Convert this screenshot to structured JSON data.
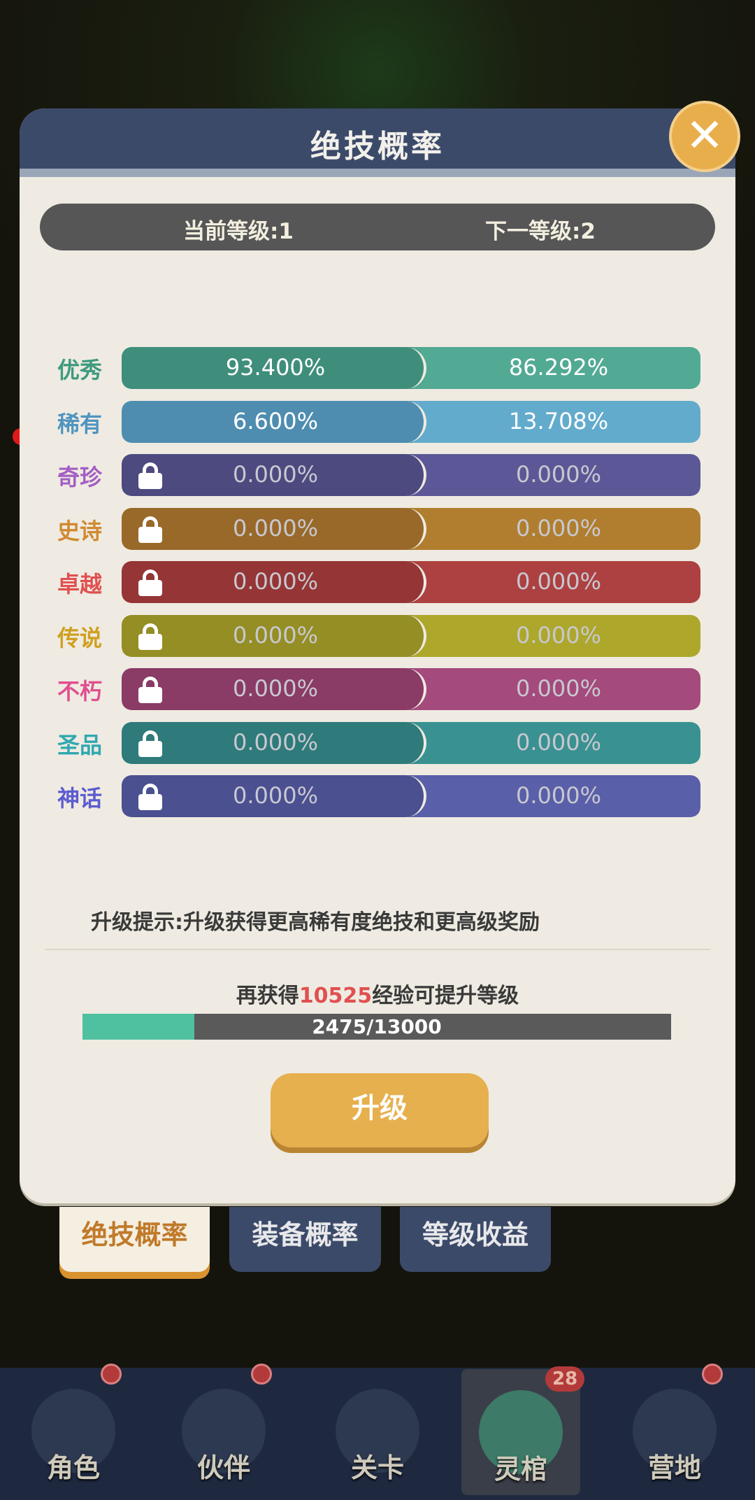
{
  "dialog": {
    "title": "绝技概率",
    "close_icon": "close-icon"
  },
  "level": {
    "current": "当前等级:1",
    "next": "下一等级:2"
  },
  "rarities": [
    {
      "name": "优秀",
      "current": "93.400%",
      "next": "86.292%",
      "locked": false,
      "label_color": "#3e9a7e",
      "color_left": "#3f8e7c",
      "color_right": "#52a994"
    },
    {
      "name": "稀有",
      "current": "6.600%",
      "next": "13.708%",
      "locked": false,
      "label_color": "#4f95c0",
      "color_left": "#4e8db0",
      "color_right": "#63abcc"
    },
    {
      "name": "奇珍",
      "current": "0.000%",
      "next": "0.000%",
      "locked": true,
      "label_color": "#a35ec4",
      "color_left": "#4d4a80",
      "color_right": "#5c5897"
    },
    {
      "name": "史诗",
      "current": "0.000%",
      "next": "0.000%",
      "locked": true,
      "label_color": "#d08a30",
      "color_left": "#99692a",
      "color_right": "#b07e2e"
    },
    {
      "name": "卓越",
      "current": "0.000%",
      "next": "0.000%",
      "locked": true,
      "label_color": "#e05050",
      "color_left": "#953535",
      "color_right": "#ad4141"
    },
    {
      "name": "传说",
      "current": "0.000%",
      "next": "0.000%",
      "locked": true,
      "label_color": "#d0a020",
      "color_left": "#948e24",
      "color_right": "#ada72c"
    },
    {
      "name": "不朽",
      "current": "0.000%",
      "next": "0.000%",
      "locked": true,
      "label_color": "#e05090",
      "color_left": "#8a3b66",
      "color_right": "#a44a7c"
    },
    {
      "name": "圣品",
      "current": "0.000%",
      "next": "0.000%",
      "locked": true,
      "label_color": "#30a8b0",
      "color_left": "#2f7a7a",
      "color_right": "#3a9191"
    },
    {
      "name": "神话",
      "current": "0.000%",
      "next": "0.000%",
      "locked": true,
      "label_color": "#5c5cd0",
      "color_left": "#4a5090",
      "color_right": "#5a5fa9"
    }
  ],
  "hint": "升级提示:升级获得更高稀有度绝技和更高级奖励",
  "exp": {
    "prefix": "再获得",
    "amount": "10525",
    "suffix": "经验可提升等级",
    "progress_label": "2475/13000",
    "progress_fraction": 0.19
  },
  "upgrade_button": "升级",
  "tabs": [
    {
      "label": "绝技概率",
      "active": true
    },
    {
      "label": "装备概率",
      "active": false
    },
    {
      "label": "等级收益",
      "active": false
    }
  ],
  "nav": [
    {
      "label": "角色",
      "dot": true
    },
    {
      "label": "伙伴",
      "dot": true
    },
    {
      "label": "关卡",
      "dot": false
    },
    {
      "label": "灵棺",
      "badge": "28",
      "selected": true
    },
    {
      "label": "营地",
      "dot": true
    }
  ]
}
